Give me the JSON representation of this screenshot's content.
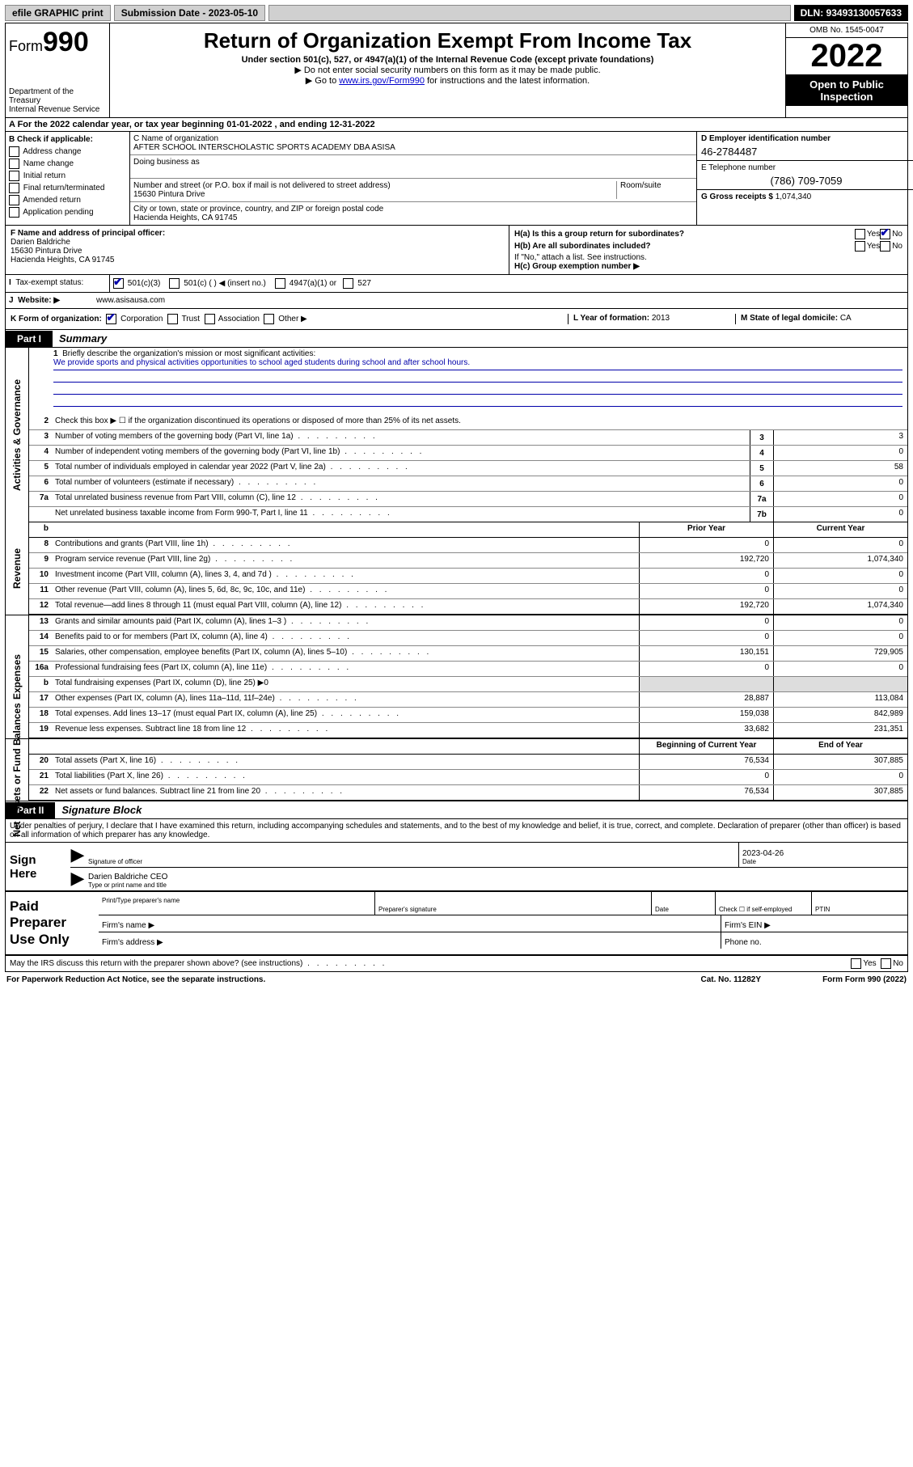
{
  "top": {
    "efile": "efile GRAPHIC print",
    "submission_label": "Submission Date - 2023-05-10",
    "dln_label": "DLN: 93493130057633"
  },
  "header": {
    "form_prefix": "Form",
    "form_number": "990",
    "dept": "Department of the Treasury\nInternal Revenue Service",
    "title": "Return of Organization Exempt From Income Tax",
    "subtitle": "Under section 501(c), 527, or 4947(a)(1) of the Internal Revenue Code (except private foundations)",
    "note1": "▶ Do not enter social security numbers on this form as it may be made public.",
    "note2_pre": "▶ Go to ",
    "note2_link": "www.irs.gov/Form990",
    "note2_post": " for instructions and the latest information.",
    "omb": "OMB No. 1545-0047",
    "year": "2022",
    "inspection": "Open to Public Inspection"
  },
  "period": {
    "label": "A For the 2022 calendar year, or tax year beginning ",
    "start": "01-01-2022",
    "mid": " , and ending ",
    "end": "12-31-2022"
  },
  "checkB": {
    "title": "B Check if applicable:",
    "items": [
      "Address change",
      "Name change",
      "Initial return",
      "Final return/terminated",
      "Amended return",
      "Application pending"
    ]
  },
  "org": {
    "name_label": "C Name of organization",
    "name": "AFTER SCHOOL INTERSCHOLASTIC SPORTS ACADEMY DBA ASISA",
    "dba_label": "Doing business as",
    "addr_label": "Number and street (or P.O. box if mail is not delivered to street address)",
    "room_label": "Room/suite",
    "addr": "15630 Pintura Drive",
    "city_label": "City or town, state or province, country, and ZIP or foreign postal code",
    "city": "Hacienda Heights, CA  91745",
    "ein_label": "D Employer identification number",
    "ein": "46-2784487",
    "phone_label": "E Telephone number",
    "phone": "(786) 709-7059",
    "gross_label": "G Gross receipts $ ",
    "gross": "1,074,340"
  },
  "officer": {
    "label": "F  Name and address of principal officer:",
    "name": "Darien Baldriche",
    "addr1": "15630 Pintura Drive",
    "addr2": "Hacienda Heights, CA  91745"
  },
  "sectionH": {
    "ha": "H(a)  Is this a group return for subordinates?",
    "hb": "H(b)  Are all subordinates included?",
    "hb_note": "If \"No,\" attach a list. See instructions.",
    "hc": "H(c)  Group exemption number ▶"
  },
  "rowI": {
    "label": "Tax-exempt status:",
    "opt1": "501(c)(3)",
    "opt2": "501(c) (  ) ◀ (insert no.)",
    "opt3": "4947(a)(1) or",
    "opt4": "527"
  },
  "rowJ": {
    "label": "Website: ▶",
    "value": "www.asisausa.com"
  },
  "rowK": {
    "label": "K Form of organization:",
    "opts": [
      "Corporation",
      "Trust",
      "Association",
      "Other ▶"
    ]
  },
  "rowL": {
    "label": "L Year of formation: ",
    "value": "2013"
  },
  "rowM": {
    "label": "M State of legal domicile: ",
    "value": "CA"
  },
  "part1": {
    "tab": "Part I",
    "title": "Summary"
  },
  "mission": {
    "label": "Briefly describe the organization's mission or most significant activities:",
    "text": "We provide sports and physical activities opportunities to school aged students during school and after school hours."
  },
  "lines_gov": [
    {
      "n": "2",
      "t": "Check this box ▶ ☐  if the organization discontinued its operations or disposed of more than 25% of its net assets.",
      "box": "",
      "v": ""
    },
    {
      "n": "3",
      "t": "Number of voting members of the governing body (Part VI, line 1a)",
      "box": "3",
      "v": "3"
    },
    {
      "n": "4",
      "t": "Number of independent voting members of the governing body (Part VI, line 1b)",
      "box": "4",
      "v": "0"
    },
    {
      "n": "5",
      "t": "Total number of individuals employed in calendar year 2022 (Part V, line 2a)",
      "box": "5",
      "v": "58"
    },
    {
      "n": "6",
      "t": "Total number of volunteers (estimate if necessary)",
      "box": "6",
      "v": "0"
    },
    {
      "n": "7a",
      "t": "Total unrelated business revenue from Part VIII, column (C), line 12",
      "box": "7a",
      "v": "0"
    },
    {
      "n": "",
      "t": "Net unrelated business taxable income from Form 990-T, Part I, line 11",
      "box": "7b",
      "v": "0"
    }
  ],
  "col_headers": {
    "prior": "Prior Year",
    "current": "Current Year",
    "begin": "Beginning of Current Year",
    "end": "End of Year"
  },
  "lines_rev": [
    {
      "n": "8",
      "t": "Contributions and grants (Part VIII, line 1h)",
      "p": "0",
      "c": "0"
    },
    {
      "n": "9",
      "t": "Program service revenue (Part VIII, line 2g)",
      "p": "192,720",
      "c": "1,074,340"
    },
    {
      "n": "10",
      "t": "Investment income (Part VIII, column (A), lines 3, 4, and 7d )",
      "p": "0",
      "c": "0"
    },
    {
      "n": "11",
      "t": "Other revenue (Part VIII, column (A), lines 5, 6d, 8c, 9c, 10c, and 11e)",
      "p": "0",
      "c": "0"
    },
    {
      "n": "12",
      "t": "Total revenue—add lines 8 through 11 (must equal Part VIII, column (A), line 12)",
      "p": "192,720",
      "c": "1,074,340"
    }
  ],
  "lines_exp": [
    {
      "n": "13",
      "t": "Grants and similar amounts paid (Part IX, column (A), lines 1–3 )",
      "p": "0",
      "c": "0"
    },
    {
      "n": "14",
      "t": "Benefits paid to or for members (Part IX, column (A), line 4)",
      "p": "0",
      "c": "0"
    },
    {
      "n": "15",
      "t": "Salaries, other compensation, employee benefits (Part IX, column (A), lines 5–10)",
      "p": "130,151",
      "c": "729,905"
    },
    {
      "n": "16a",
      "t": "Professional fundraising fees (Part IX, column (A), line 11e)",
      "p": "0",
      "c": "0"
    },
    {
      "n": "b",
      "t": "Total fundraising expenses (Part IX, column (D), line 25) ▶0",
      "p": "",
      "c": ""
    },
    {
      "n": "17",
      "t": "Other expenses (Part IX, column (A), lines 11a–11d, 11f–24e)",
      "p": "28,887",
      "c": "113,084"
    },
    {
      "n": "18",
      "t": "Total expenses. Add lines 13–17 (must equal Part IX, column (A), line 25)",
      "p": "159,038",
      "c": "842,989"
    },
    {
      "n": "19",
      "t": "Revenue less expenses. Subtract line 18 from line 12",
      "p": "33,682",
      "c": "231,351"
    }
  ],
  "lines_net": [
    {
      "n": "20",
      "t": "Total assets (Part X, line 16)",
      "p": "76,534",
      "c": "307,885"
    },
    {
      "n": "21",
      "t": "Total liabilities (Part X, line 26)",
      "p": "0",
      "c": "0"
    },
    {
      "n": "22",
      "t": "Net assets or fund balances. Subtract line 21 from line 20",
      "p": "76,534",
      "c": "307,885"
    }
  ],
  "side_labels": {
    "gov": "Activities & Governance",
    "rev": "Revenue",
    "exp": "Expenses",
    "net": "Net Assets or Fund Balances"
  },
  "part2": {
    "tab": "Part II",
    "title": "Signature Block"
  },
  "declaration": "Under penalties of perjury, I declare that I have examined this return, including accompanying schedules and statements, and to the best of my knowledge and belief, it is true, correct, and complete. Declaration of preparer (other than officer) is based on all information of which preparer has any knowledge.",
  "sign": {
    "here": "Sign Here",
    "sig_officer": "Signature of officer",
    "date_label": "Date",
    "date": "2023-04-26",
    "name": "Darien Baldriche  CEO",
    "name_label": "Type or print name and title"
  },
  "paid": {
    "label": "Paid Preparer Use Only",
    "col1": "Print/Type preparer's name",
    "col2": "Preparer's signature",
    "col3": "Date",
    "col4a": "Check ☐ if self-employed",
    "col4b": "PTIN",
    "firm_name": "Firm's name    ▶",
    "firm_ein": "Firm's EIN ▶",
    "firm_addr": "Firm's address ▶",
    "phone": "Phone no."
  },
  "footer": {
    "discuss": "May the IRS discuss this return with the preparer shown above? (see instructions)",
    "paperwork": "For Paperwork Reduction Act Notice, see the separate instructions.",
    "cat": "Cat. No. 11282Y",
    "form": "Form 990 (2022)"
  }
}
